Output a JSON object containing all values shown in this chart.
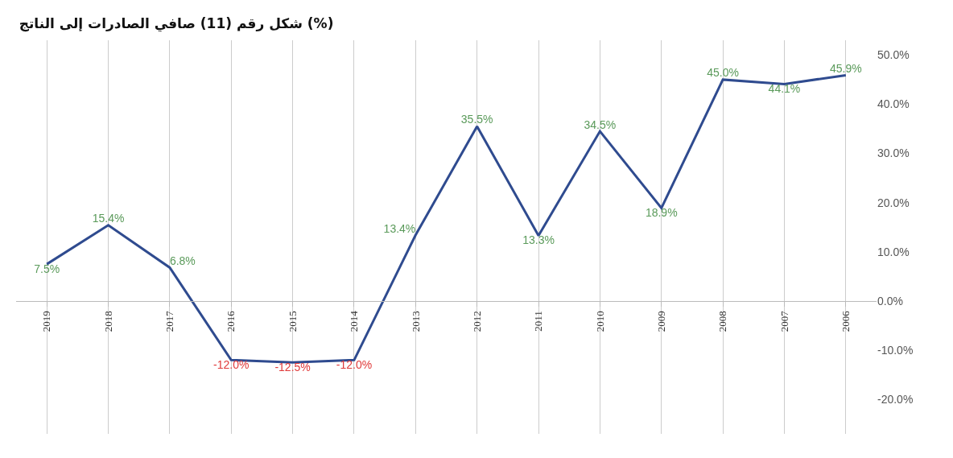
{
  "chart_data": {
    "type": "line",
    "title": "شكل رقم (11) صافي الصادرات إلى الناتج (%)",
    "categories": [
      "2019",
      "2018",
      "2017",
      "2016",
      "2015",
      "2014",
      "2013",
      "2012",
      "2011",
      "2010",
      "2009",
      "2008",
      "2007",
      "2006"
    ],
    "values": [
      7.5,
      15.4,
      6.8,
      -12.0,
      -12.5,
      -12.0,
      13.4,
      35.5,
      13.3,
      34.5,
      18.9,
      45.0,
      44.1,
      45.9
    ],
    "value_labels": [
      "7.5%",
      "15.4%",
      "6.8%",
      "-12.0%",
      "-12.5%",
      "-12.0%",
      "13.4%",
      "35.5%",
      "13.3%",
      "34.5%",
      "18.9%",
      "45.0%",
      "44.1%",
      "45.9%"
    ],
    "color": "#2f4b8f",
    "marker": "none",
    "line_style": "solid",
    "grid": "x",
    "ylim": [
      -27,
      53
    ],
    "yticks": [
      {
        "value": -20,
        "label": "-20.0%"
      },
      {
        "value": -10,
        "label": "-10.0%"
      },
      {
        "value": 0,
        "label": "0.0%"
      },
      {
        "value": 10,
        "label": "10.0%"
      },
      {
        "value": 20,
        "label": "20.0%"
      },
      {
        "value": 30,
        "label": "30.0%"
      },
      {
        "value": 40,
        "label": "40.0%"
      },
      {
        "value": 50,
        "label": "50.0%"
      }
    ]
  }
}
